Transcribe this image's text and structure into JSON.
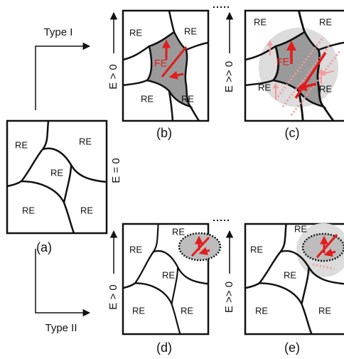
{
  "type_arrows": {
    "upper": "Type I",
    "lower": "Type II"
  },
  "panels": [
    {
      "label": "(a)",
      "field": "E = 0",
      "regions": [
        "RE",
        "RE",
        "RE",
        "RE",
        "RE"
      ]
    },
    {
      "label": "(b)",
      "field": "E > 0",
      "regions": [
        "RE",
        "RE",
        "RE",
        "RE"
      ],
      "phase": "FE"
    },
    {
      "label": "(c)",
      "field": "E >> 0",
      "regions": [
        "RE",
        "RE",
        "RE",
        "RE"
      ],
      "phase": "FE"
    },
    {
      "label": "(d)",
      "field": "E > 0",
      "regions": [
        "RE",
        "RE",
        "RE",
        "RE",
        "RE"
      ]
    },
    {
      "label": "(e)",
      "field": "E >> 0",
      "regions": [
        "RE",
        "RE",
        "RE",
        "RE",
        "RE"
      ]
    }
  ]
}
